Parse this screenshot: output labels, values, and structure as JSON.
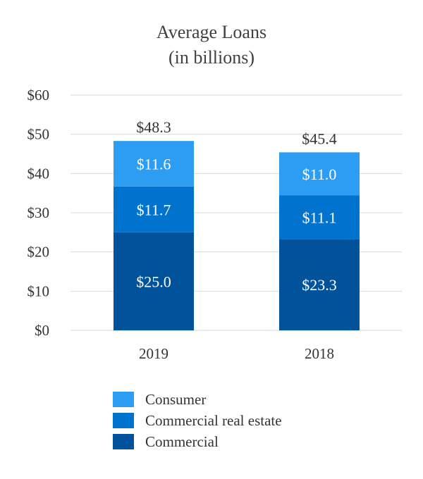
{
  "chart_data": {
    "type": "bar",
    "stacked": true,
    "title": "Average Loans",
    "subtitle": "(in billions)",
    "categories": [
      "2019",
      "2018"
    ],
    "series": [
      {
        "name": "Commercial",
        "values": [
          25.0,
          23.3
        ],
        "labels": [
          "$25.0",
          "$23.3"
        ],
        "color": "#00539b"
      },
      {
        "name": "Commercial real estate",
        "values": [
          11.7,
          11.1
        ],
        "labels": [
          "$11.7",
          "$11.1"
        ],
        "color": "#0073cf"
      },
      {
        "name": "Consumer",
        "values": [
          11.6,
          11.0
        ],
        "labels": [
          "$11.6",
          "$11.0"
        ],
        "color": "#2c9df2"
      }
    ],
    "totals": [
      48.3,
      45.4
    ],
    "total_labels": [
      "$48.3",
      "$45.4"
    ],
    "y_ticks": [
      0,
      10,
      20,
      30,
      40,
      50,
      60
    ],
    "y_tick_labels": [
      "$0",
      "$10",
      "$20",
      "$30",
      "$40",
      "$50",
      "$60"
    ],
    "ylim": [
      0,
      60
    ],
    "grid": true,
    "legend_position": "bottom",
    "legend_order": [
      "Consumer",
      "Commercial real estate",
      "Commercial"
    ]
  }
}
